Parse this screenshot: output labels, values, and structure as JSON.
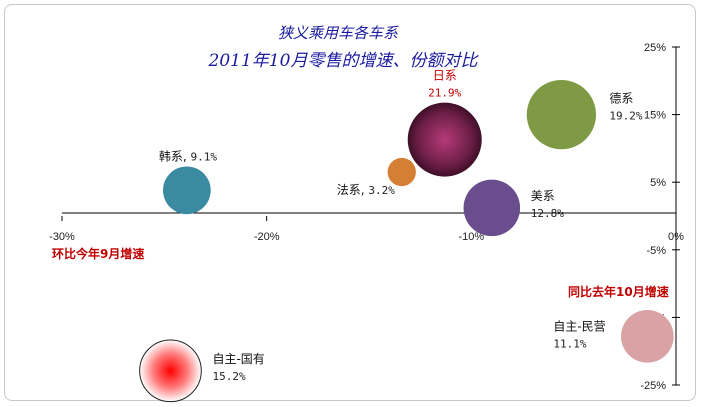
{
  "chart_data": {
    "type": "bubble",
    "title": "狭义乘用车各车系",
    "subtitle": "2011年10月零售的增速、份额对比",
    "x_axis_note": "环比今年9月增速",
    "y_axis_note": "同比去年10月增速",
    "xlim": [
      -30,
      0
    ],
    "ylim": [
      -25,
      25
    ],
    "x_ticks": [
      "-30%",
      "-20%",
      "-10%",
      "0%"
    ],
    "y_ticks": [
      "25%",
      "15%",
      "5%",
      "-5%",
      "-15%",
      "-25%"
    ],
    "grid": false,
    "series": [
      {
        "name": "日系",
        "share": "21.9%",
        "share_value": 21.9,
        "x": -11.3,
        "y": 11.3,
        "color": "#7a2552",
        "highlight": true
      },
      {
        "name": "德系",
        "share": "19.2%",
        "share_value": 19.2,
        "x": -5.6,
        "y": 15.0,
        "color": "#7f9a45",
        "highlight": false
      },
      {
        "name": "韩系",
        "share": "9.1%",
        "share_value": 9.1,
        "x": -23.9,
        "y": 3.8,
        "color": "#3a8ba1",
        "highlight": false
      },
      {
        "name": "法系",
        "share": "3.2%",
        "share_value": 3.2,
        "x": -13.4,
        "y": 6.5,
        "color": "#d47f34",
        "highlight": false
      },
      {
        "name": "美系",
        "share": "12.8%",
        "share_value": 12.8,
        "x": -9.0,
        "y": 1.2,
        "color": "#6a4d8c",
        "highlight": false
      },
      {
        "name": "自主-民营",
        "share": "11.1%",
        "share_value": 11.1,
        "x": -1.4,
        "y": -17.8,
        "color": "#d9a2a4",
        "highlight": false
      },
      {
        "name": "自主-国有",
        "share": "15.2%",
        "share_value": 15.2,
        "x": -24.7,
        "y": -22.9,
        "color": "#ff2a2a",
        "highlight": false
      }
    ]
  }
}
